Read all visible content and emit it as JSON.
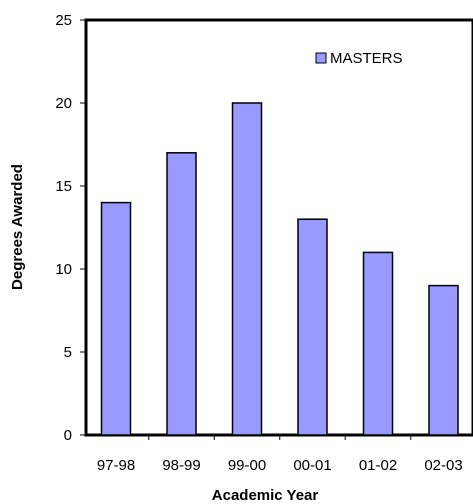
{
  "chart_data": {
    "type": "bar",
    "categories": [
      "97-98",
      "98-99",
      "99-00",
      "00-01",
      "01-02",
      "02-03"
    ],
    "series": [
      {
        "name": "MASTERS",
        "values": [
          14,
          17,
          20,
          13,
          11,
          9
        ],
        "color": "#9999ff"
      }
    ],
    "xlabel": "Academic Year",
    "ylabel": "Degrees Awarded",
    "ylim": [
      0,
      25
    ],
    "yticks": [
      "0",
      "5",
      "10",
      "15",
      "20",
      "25"
    ],
    "grid": false,
    "legend": "top-right"
  }
}
